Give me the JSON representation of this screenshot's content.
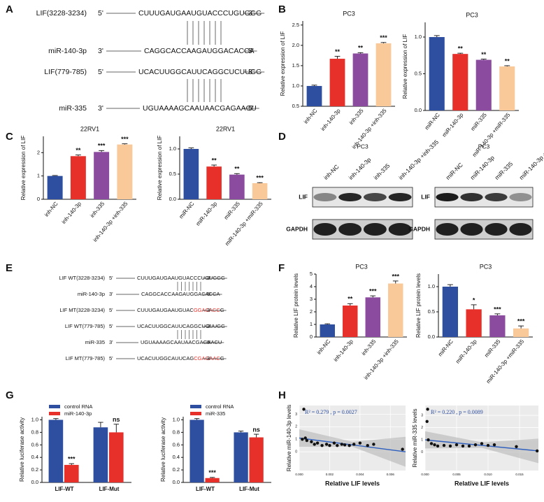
{
  "panels": [
    "A",
    "B",
    "C",
    "D",
    "E",
    "F",
    "G",
    "H"
  ],
  "sequences": {
    "rows": [
      {
        "name": "LIF(3228-3234)",
        "left": "5'",
        "seq": "CUUUGAUGAAUGUACCCUGUGGG",
        "right": "3'"
      },
      {
        "name": "miR-140-3p",
        "left": "3'",
        "seq": "CAGGCACCAAGAUGGACACCA",
        "right": "5'"
      },
      {
        "name": "LIF(779-785)",
        "left": "5'",
        "seq": "UCACUUGGCAUUCAGGCUCUUGG",
        "right": "3'"
      },
      {
        "name": "miR-335",
        "left": "3'",
        "seq": "UGUAAAAGCAAUAACGAGAACU",
        "right": "5'"
      }
    ]
  },
  "mutants": {
    "rows": [
      {
        "name": "LIF WT(3228-3234)",
        "left": "5'",
        "parts": [
          {
            "text": "CUUUGAUGAAUGUACCCUGUGGG",
            "color": "#111111"
          }
        ],
        "right": "3'"
      },
      {
        "name": "miR-140-3p",
        "left": "3'",
        "parts": [
          {
            "text": "CAGGCACCAAGAUGGACACCA",
            "color": "#111111"
          }
        ],
        "right": "5'"
      },
      {
        "name": "LIF MT(3228-3234)",
        "left": "5'",
        "parts": [
          {
            "text": "CUUUGAUGAAUGUAC",
            "color": "#111111"
          },
          {
            "text": "GGACACC",
            "color": "#e8302a"
          },
          {
            "text": "G",
            "color": "#111111"
          }
        ],
        "right": "3'"
      },
      {
        "name": "LIF WT(779-785)",
        "left": "5'",
        "parts": [
          {
            "text": "UCACUUGGCAUUCAGGCUCUUGG",
            "color": "#111111"
          }
        ],
        "right": "3'"
      },
      {
        "name": "miR-335",
        "left": "3'",
        "parts": [
          {
            "text": "UGUAAAAGCAAUAACGAGAACU",
            "color": "#111111"
          }
        ],
        "right": "5'"
      },
      {
        "name": "LIF MT(779-785)",
        "left": "5'",
        "parts": [
          {
            "text": "UCACUUGGCAUUCAG",
            "color": "#111111"
          },
          {
            "text": "CGAGAAC",
            "color": "#e8302a"
          },
          {
            "text": "G",
            "color": "#111111"
          }
        ],
        "right": "3'"
      }
    ]
  },
  "blots": [
    {
      "title": "PC3",
      "lanes": [
        "inh-NC",
        "inh-140-3p",
        "inh-335",
        "inh-140-3p +inh-335"
      ],
      "rows": [
        "LIF",
        "GAPDH"
      ]
    },
    {
      "title": "PC3",
      "lanes": [
        "miR-NC",
        "miR-140-3p",
        "miR-335",
        "miR-140-3p +miR-335"
      ],
      "rows": [
        "LIF",
        "GAPDH"
      ]
    }
  ],
  "chart_data": [
    {
      "type": "bar",
      "title": "PC3",
      "y_label": "Relative expression of LIF",
      "categories": [
        "inh-NC",
        "inh-140-3p",
        "inh-335",
        "inh-140-3p +inh-335"
      ],
      "values": [
        1.0,
        1.67,
        1.8,
        2.05
      ],
      "errors": [
        0.02,
        0.06,
        0.02,
        0.02
      ],
      "labels": [
        null,
        "**",
        "**",
        "***"
      ],
      "colors": [
        "#2e4fa0",
        "#e8302a",
        "#8b4b9e",
        "#f9c99a"
      ],
      "ylim": [
        0.5,
        2.6
      ],
      "yticks": [
        0.5,
        {
          "value": 1.0,
          "label": "1.0"
        },
        1.5,
        {
          "value": 2.0,
          "label": "2.0"
        },
        2.5
      ]
    },
    {
      "type": "bar",
      "title": "PC3",
      "y_label": "Relative expression of LIF",
      "categories": [
        "miR-NC",
        "miR-140-3p",
        "miR-335",
        "miR-140-3p +miR-335"
      ],
      "values": [
        1.0,
        0.77,
        0.69,
        0.6
      ],
      "errors": [
        0.02,
        0.01,
        0.01,
        0.01
      ],
      "labels": [
        null,
        "**",
        "**",
        "**"
      ],
      "colors": [
        "#2e4fa0",
        "#e8302a",
        "#8b4b9e",
        "#f9c99a"
      ],
      "ylim": [
        0,
        1.2
      ],
      "yticks": [
        {
          "value": 0.0,
          "label": "0.0"
        },
        0.5,
        {
          "value": 1.0,
          "label": "1.0"
        }
      ]
    },
    {
      "type": "bar",
      "title": "22RV1",
      "y_label": "Relative expression of LIF",
      "categories": [
        "inh-NC",
        "inh-140-3p",
        "inh-335",
        "inh-140-3p +inh-335"
      ],
      "values": [
        1.0,
        1.85,
        2.03,
        2.35
      ],
      "errors": [
        0.02,
        0.05,
        0.06,
        0.03
      ],
      "labels": [
        null,
        "**",
        "***",
        "***"
      ],
      "colors": [
        "#2e4fa0",
        "#e8302a",
        "#8b4b9e",
        "#f9c99a"
      ],
      "ylim": [
        0,
        2.7
      ],
      "yticks": [
        0,
        1,
        2
      ]
    },
    {
      "type": "bar",
      "title": "22RV1",
      "y_label": "Relative expression of LIF",
      "categories": [
        "miR-NC",
        "miR-140-3p",
        "miR-335",
        "miR-140-3p +miR-335"
      ],
      "values": [
        1.0,
        0.65,
        0.49,
        0.32
      ],
      "errors": [
        0.02,
        0.03,
        0.02,
        0.01
      ],
      "labels": [
        null,
        "**",
        "**",
        "***"
      ],
      "colors": [
        "#2e4fa0",
        "#e8302a",
        "#8b4b9e",
        "#f9c99a"
      ],
      "ylim": [
        0,
        1.25
      ],
      "yticks": [
        {
          "value": 0.0,
          "label": "0.0"
        },
        0.5,
        {
          "value": 1.0,
          "label": "1.0"
        }
      ]
    },
    {
      "type": "bar",
      "title": "PC3",
      "y_label": "Relative LIF protein levels",
      "categories": [
        "inh-NC",
        "inh-140-3p",
        "inh-335",
        "inh-140-3p +inh-335"
      ],
      "values": [
        1.0,
        2.5,
        3.15,
        4.25
      ],
      "errors": [
        0.05,
        0.15,
        0.12,
        0.2
      ],
      "labels": [
        null,
        "**",
        "***",
        "***"
      ],
      "colors": [
        "#2e4fa0",
        "#e8302a",
        "#8b4b9e",
        "#f9c99a"
      ],
      "ylim": [
        0,
        5
      ],
      "yticks": [
        0,
        1,
        2,
        3,
        4,
        5
      ]
    },
    {
      "type": "bar",
      "title": "PC3",
      "y_label": "Relative LIF protein levels",
      "categories": [
        "miR-NC",
        "miR-140-3p",
        "miR-335",
        "miR-140-3p +miR-335"
      ],
      "values": [
        1.0,
        0.55,
        0.43,
        0.17
      ],
      "errors": [
        0.04,
        0.09,
        0.03,
        0.05
      ],
      "labels": [
        null,
        "*",
        "***",
        "***"
      ],
      "colors": [
        "#2e4fa0",
        "#e8302a",
        "#8b4b9e",
        "#f9c99a"
      ],
      "ylim": [
        0,
        1.25
      ],
      "yticks": [
        {
          "value": 0.0,
          "label": "0.0"
        },
        0.5,
        {
          "value": 1.0,
          "label": "1.0"
        }
      ]
    },
    {
      "type": "bar",
      "y_label": "Relative luciferase activity",
      "categories": [
        "LIF-WT",
        "LIF-Mut"
      ],
      "series": [
        {
          "name": "control RNA",
          "color": "#2e4fa0",
          "values": [
            1.0,
            0.88
          ],
          "errors": [
            0.02,
            0.08
          ],
          "labels": [
            null,
            null
          ]
        },
        {
          "name": "miR-140-3p",
          "color": "#e8302a",
          "values": [
            0.28,
            0.8
          ],
          "errors": [
            0.02,
            0.13
          ],
          "labels": [
            "***",
            "ns"
          ]
        }
      ],
      "ylim": [
        0,
        1.05
      ],
      "yticks": [
        {
          "value": 0.0,
          "label": "0.0"
        },
        0.2,
        0.4,
        0.6,
        0.8,
        {
          "value": 1.0,
          "label": "1.0"
        }
      ],
      "legend": "top"
    },
    {
      "type": "bar",
      "y_label": "Relative luciferase activity",
      "categories": [
        "LIF-WT",
        "LIF-Mut"
      ],
      "series": [
        {
          "name": "control RNA",
          "color": "#2e4fa0",
          "values": [
            1.0,
            0.8
          ],
          "errors": [
            0.02,
            0.02
          ],
          "labels": [
            null,
            null
          ]
        },
        {
          "name": "miR-335",
          "color": "#e8302a",
          "values": [
            0.07,
            0.72
          ],
          "errors": [
            0.01,
            0.05
          ],
          "labels": [
            "***",
            "ns"
          ]
        }
      ],
      "ylim": [
        0,
        1.05
      ],
      "yticks": [
        {
          "value": 0.0,
          "label": "0.0"
        },
        0.2,
        0.4,
        0.6,
        0.8,
        {
          "value": 1.0,
          "label": "1.0"
        }
      ],
      "legend": "top"
    },
    {
      "type": "scatter",
      "x_label": "Relative LIF levels",
      "y_label": "Relative miR-140-3p levels",
      "annotation": "R² = 0.279 , p = 0.0027",
      "x": [
        0.0003,
        0.0002,
        0.0004,
        0.0005,
        0.0008,
        0.001,
        0.0012,
        0.0015,
        0.0018,
        0.002,
        0.0023,
        0.0025,
        0.0028,
        0.003,
        0.0033,
        0.0036,
        0.004,
        0.0045,
        0.0049,
        0.0068
      ],
      "values": [
        3.4,
        1.0,
        1.1,
        0.9,
        0.8,
        0.6,
        0.7,
        0.5,
        0.6,
        0.5,
        0.7,
        0.5,
        0.6,
        0.55,
        0.5,
        0.6,
        0.7,
        0.5,
        0.6,
        0.2
      ],
      "color": "#111111",
      "fit_color": "#2e5fbf",
      "fit_x": [
        0,
        0.007
      ],
      "fit_y": [
        1.1,
        0.0
      ],
      "band_x": [
        0,
        0.0035,
        0.007
      ],
      "band_upper": [
        1.8,
        0.8,
        1.2
      ],
      "band_lower": [
        0.4,
        0.4,
        -1.2
      ],
      "xlim": [
        0,
        0.007
      ],
      "xticks": [
        {
          "value": 0.0,
          "label": "0.000"
        },
        0.002,
        0.004,
        0.006
      ],
      "ylim": [
        -1.5,
        3.7
      ],
      "yticks": [
        0,
        1,
        2,
        3
      ],
      "grid": true
    },
    {
      "type": "scatter",
      "x_label": "Relative LIF levels",
      "y_label": "Relative miR-335 levels",
      "annotation": "R² = 0.220 , p = 0.0089",
      "x": [
        0.0004,
        0.0003,
        0.0005,
        0.001,
        0.0015,
        0.002,
        0.003,
        0.004,
        0.005,
        0.006,
        0.007,
        0.008,
        0.009,
        0.01,
        0.011,
        0.0145,
        0.0178
      ],
      "values": [
        3.5,
        2.5,
        1.0,
        0.7,
        0.6,
        0.5,
        0.55,
        0.5,
        0.6,
        0.5,
        0.5,
        0.6,
        0.7,
        0.55,
        0.6,
        0.45,
        0.1
      ],
      "color": "#111111",
      "fit_color": "#2e5fbf",
      "fit_x": [
        0,
        0.018
      ],
      "fit_y": [
        1.0,
        0.1
      ],
      "band_x": [
        0,
        0.009,
        0.018
      ],
      "band_upper": [
        1.7,
        0.8,
        1.1
      ],
      "band_lower": [
        0.3,
        0.35,
        -0.9
      ],
      "xlim": [
        0,
        0.018
      ],
      "xticks": [
        {
          "value": 0.0,
          "label": "0.000"
        },
        0.005,
        {
          "value": 0.01,
          "label": "0.010"
        },
        0.015
      ],
      "ylim": [
        -1.5,
        3.8
      ],
      "yticks": [
        0,
        1,
        2,
        3
      ],
      "grid": true
    }
  ]
}
